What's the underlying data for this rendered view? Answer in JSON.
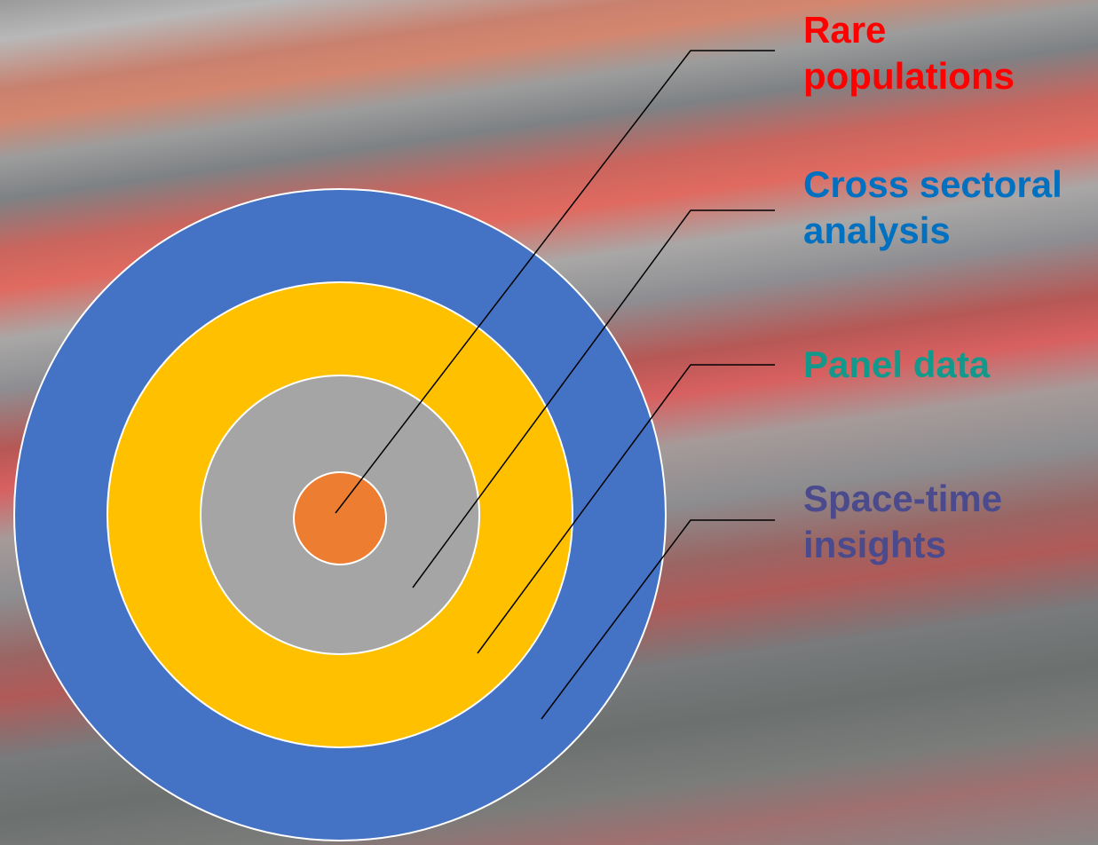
{
  "labels": [
    {
      "lines": [
        "Rare",
        "populations"
      ]
    },
    {
      "lines": [
        "Cross sectoral",
        "analysis"
      ]
    },
    {
      "lines": [
        "Panel data"
      ]
    },
    {
      "lines": [
        "Space-time",
        "insights"
      ]
    }
  ]
}
